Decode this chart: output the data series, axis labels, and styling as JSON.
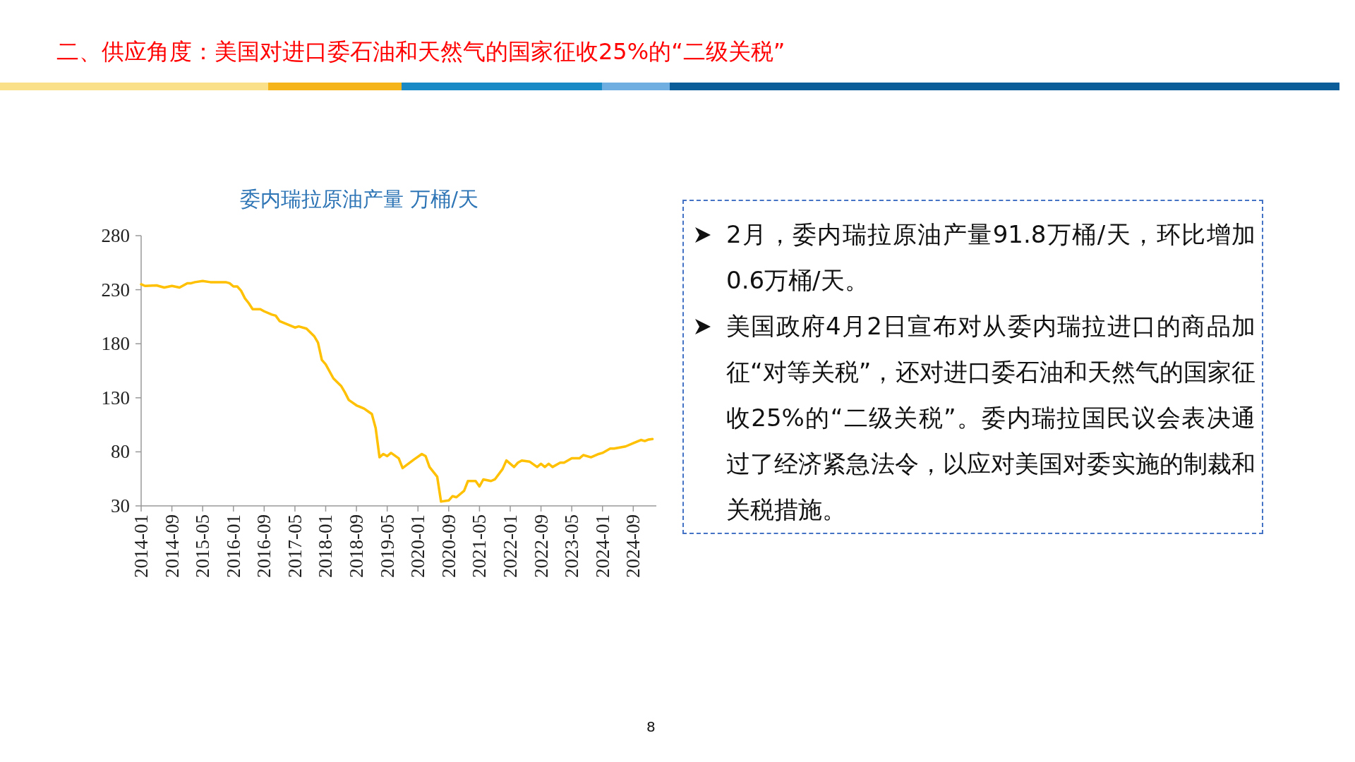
{
  "chart_data": {
    "type": "line",
    "title": "二、供应角度：美国对进口委石油和天然气的国家征收25%的“二级关税”",
    "subtitle": "委内瑞拉原油产量 万桶/天",
    "x": [
      "2014-01",
      "2014-02",
      "2014-05",
      "2014-07",
      "2014-09",
      "2014-11",
      "2015-01",
      "2015-02",
      "2015-03",
      "2015-05",
      "2015-07",
      "2015-09",
      "2015-11",
      "2015-12",
      "2016-01",
      "2016-02",
      "2016-03",
      "2016-04",
      "2016-05",
      "2016-06",
      "2016-08",
      "2016-09",
      "2016-11",
      "2016-12",
      "2017-01",
      "2017-03",
      "2017-05",
      "2017-06",
      "2017-08",
      "2017-10",
      "2017-11",
      "2017-12",
      "2018-01",
      "2018-03",
      "2018-05",
      "2018-06",
      "2018-07",
      "2018-09",
      "2018-11",
      "2018-12",
      "2019-01",
      "2019-02",
      "2019-03",
      "2019-04",
      "2019-05",
      "2019-06",
      "2019-08",
      "2019-09",
      "2019-12",
      "2020-02",
      "2020-03",
      "2020-04",
      "2020-06",
      "2020-07",
      "2020-09",
      "2020-10",
      "2020-11",
      "2021-01",
      "2021-02",
      "2021-04",
      "2021-05",
      "2021-06",
      "2021-08",
      "2021-09",
      "2021-11",
      "2021-12",
      "2022-02",
      "2022-03",
      "2022-04",
      "2022-06",
      "2022-08",
      "2022-09",
      "2022-10",
      "2022-11",
      "2022-12",
      "2023-02",
      "2023-03",
      "2023-05",
      "2023-07",
      "2023-08",
      "2023-10",
      "2023-12",
      "2024-01",
      "2024-03",
      "2024-04",
      "2024-07",
      "2024-09",
      "2024-11",
      "2024-12",
      "2025-01",
      "2025-02"
    ],
    "series": [
      {
        "color": "#ffc000",
        "values": [
          235,
          233.5,
          234,
          232,
          233.5,
          232,
          236,
          236,
          237,
          238,
          237,
          237,
          237,
          236,
          233,
          233,
          229,
          222,
          217.5,
          212,
          212,
          210,
          207,
          206,
          201,
          198,
          195,
          196,
          194,
          187,
          181,
          165,
          161,
          148,
          141,
          135,
          128,
          123,
          120,
          117.5,
          115,
          102,
          75,
          78,
          76,
          79,
          74,
          65,
          73,
          78,
          76,
          66,
          57,
          34,
          35,
          39,
          38,
          44,
          53,
          53,
          48,
          54.5,
          53,
          54.5,
          64,
          72,
          66,
          70,
          72,
          71,
          66,
          69,
          66,
          69,
          66,
          70,
          70,
          74,
          74,
          77,
          75,
          78,
          79,
          83,
          83,
          85,
          88,
          91,
          90,
          91.4,
          91.8
        ]
      }
    ],
    "xlim": [
      "2014-01",
      "2025-03"
    ],
    "ylim": [
      30,
      280
    ],
    "yticks": [
      30,
      80,
      130,
      180,
      230,
      280
    ],
    "xticks": [
      "2014-01",
      "2014-09",
      "2015-05",
      "2016-01",
      "2016-09",
      "2017-05",
      "2018-01",
      "2018-09",
      "2019-05",
      "2020-01",
      "2020-09",
      "2021-05",
      "2022-01",
      "2022-09",
      "2023-05",
      "2024-01",
      "2024-09"
    ],
    "annotations": [
      "2月，委内瑞拉原油产量91.8万桶/天，环比增加0.6万桶/天。",
      "美国政府4月2日宣布对从委内瑞拉进口的商品加征“对等关税”，还对进口委石油和天然气的国家征收25%的“二级关税”。委内瑞拉国民议会表决通过了经济紧急法令，以应对美国对委实施的制裁和关税措施。",
      "8"
    ]
  }
}
